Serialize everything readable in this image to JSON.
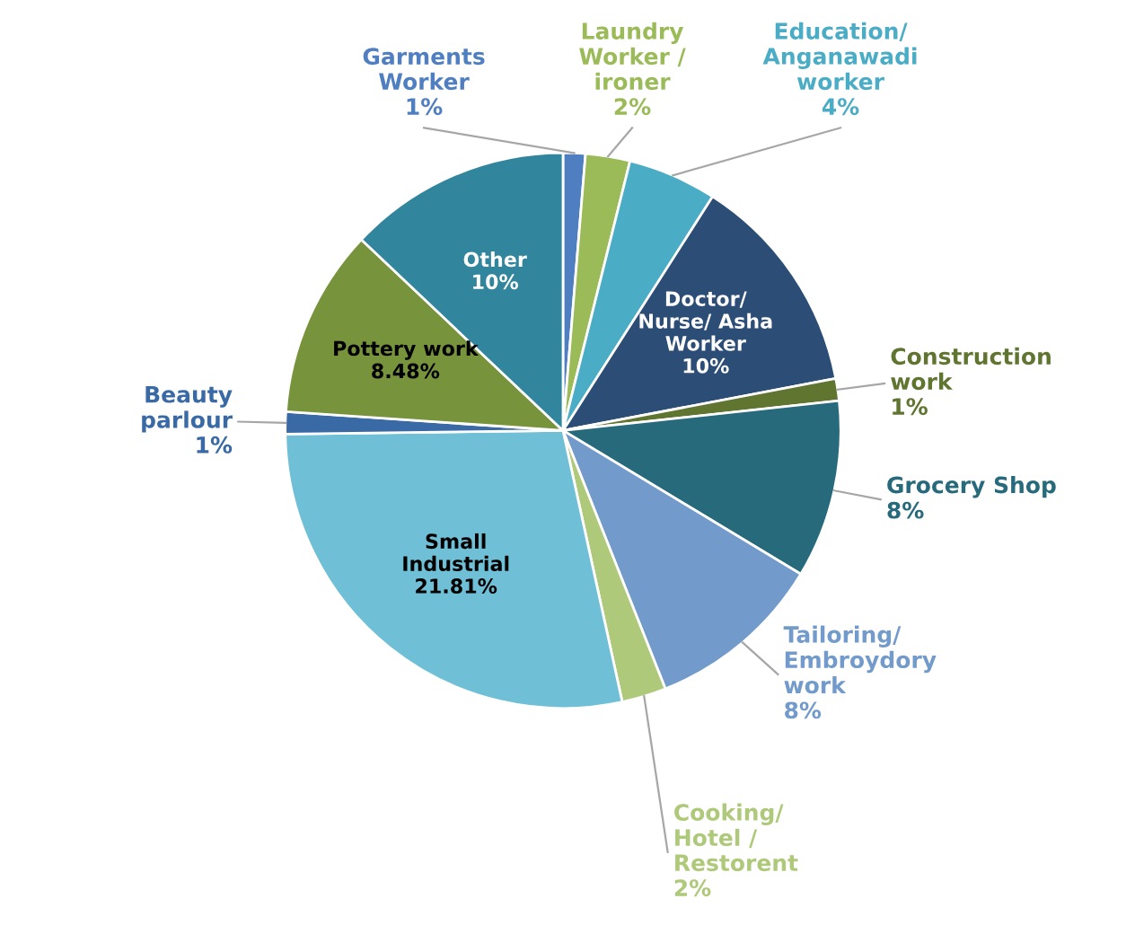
{
  "chart_data": {
    "type": "pie",
    "categories": [
      "Garments Worker",
      "Laundry Worker / ironer",
      "Education/ Anganawadi worker",
      "Doctor/ Nurse/ Asha Worker",
      "Construction work",
      "Grocery Shop",
      "Tailoring/ Embroydory work",
      "Cooking/ Hotel / Restorent",
      "Small Industrial",
      "Beauty parlour",
      "Pottery work",
      "Other"
    ],
    "values": [
      1,
      2,
      4,
      10,
      1,
      8,
      8,
      2,
      21.81,
      1,
      8.48,
      10
    ],
    "value_labels": [
      "1%",
      "2%",
      "4%",
      "10%",
      "1%",
      "8%",
      "8%",
      "2%",
      "21.81%",
      "1%",
      "8.48%",
      "10%"
    ],
    "colors": [
      "#4f7fc0",
      "#9bbb59",
      "#4bacc6",
      "#2c4d75",
      "#5f7530",
      "#276a7c",
      "#729aca",
      "#afc97a",
      "#6fbfd6",
      "#3a6aa6",
      "#77933c",
      "#31859c"
    ],
    "legend": false
  }
}
